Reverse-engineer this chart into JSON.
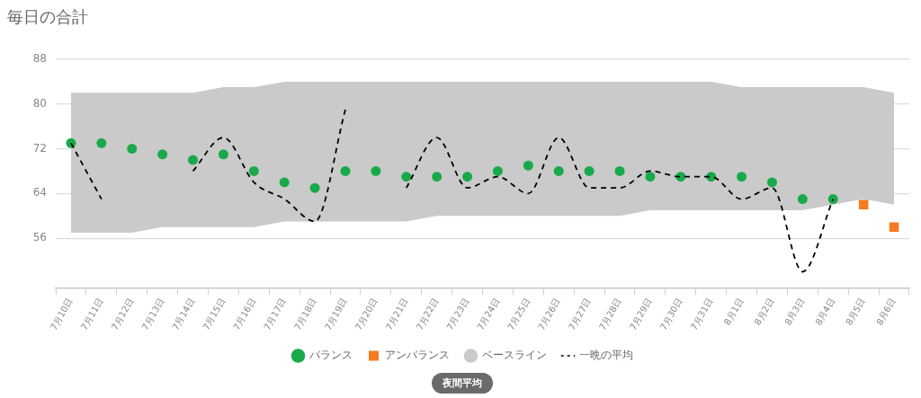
{
  "chart_data": {
    "type": "scatter",
    "title": "毎日の合計",
    "categories": [
      "7月10日",
      "7月11日",
      "7月12日",
      "7月13日",
      "7月14日",
      "7月15日",
      "7月16日",
      "7月17日",
      "7月18日",
      "7月19日",
      "7月20日",
      "7月21日",
      "7月22日",
      "7月23日",
      "7月24日",
      "7月25日",
      "7月26日",
      "7月27日",
      "7月28日",
      "7月29日",
      "7月30日",
      "7月31日",
      "8月1日",
      "8月2日",
      "8月3日",
      "8月4日",
      "8月5日",
      "8月6日"
    ],
    "series": [
      {
        "name": "バランス",
        "color": "#19a94b",
        "marker": "circle",
        "values": [
          73,
          73,
          72,
          71,
          70,
          71,
          68,
          66,
          65,
          68,
          68,
          67,
          67,
          67,
          68,
          69,
          68,
          68,
          68,
          67,
          67,
          67,
          67,
          66,
          63,
          63,
          null,
          null
        ]
      },
      {
        "name": "アンバランス",
        "color": "#f47b20",
        "marker": "square",
        "values": [
          null,
          null,
          null,
          null,
          null,
          null,
          null,
          null,
          null,
          null,
          null,
          null,
          null,
          null,
          null,
          null,
          null,
          null,
          null,
          null,
          null,
          null,
          null,
          null,
          null,
          null,
          62,
          58
        ]
      },
      {
        "name": "ベースライン",
        "type": "area",
        "color": "#cacaca",
        "values": [
          null,
          null,
          null,
          null,
          null,
          null,
          null,
          null,
          null,
          null,
          null,
          null,
          null,
          null,
          null,
          null,
          null,
          null,
          null,
          null,
          null,
          null,
          null,
          null,
          null,
          null,
          null,
          null
        ],
        "lower": [
          57,
          57,
          57,
          58,
          58,
          58,
          58,
          59,
          59,
          59,
          59,
          59,
          60,
          60,
          60,
          60,
          60,
          60,
          60,
          61,
          61,
          61,
          61,
          61,
          61,
          62,
          63,
          62
        ],
        "upper": [
          82,
          82,
          82,
          82,
          82,
          83,
          83,
          84,
          84,
          84,
          84,
          84,
          84,
          84,
          84,
          84,
          84,
          84,
          84,
          84,
          84,
          84,
          83,
          83,
          83,
          83,
          83,
          82
        ]
      },
      {
        "name": "一晩の平均",
        "type": "line",
        "color": "#000000",
        "line_style": "dashed",
        "marker": "none",
        "values": [
          73,
          63,
          null,
          null,
          68,
          74,
          66,
          63,
          59,
          79,
          null,
          65,
          74,
          65,
          67,
          64,
          74,
          65,
          65,
          68,
          67,
          67,
          63,
          65,
          50,
          63,
          null,
          null
        ]
      }
    ],
    "ylim": [
      47,
      88
    ],
    "yticks": [
      56,
      64,
      72,
      80,
      88
    ],
    "grid": "y",
    "legend": "bottom",
    "annotations": [
      "夜間平均"
    ]
  }
}
